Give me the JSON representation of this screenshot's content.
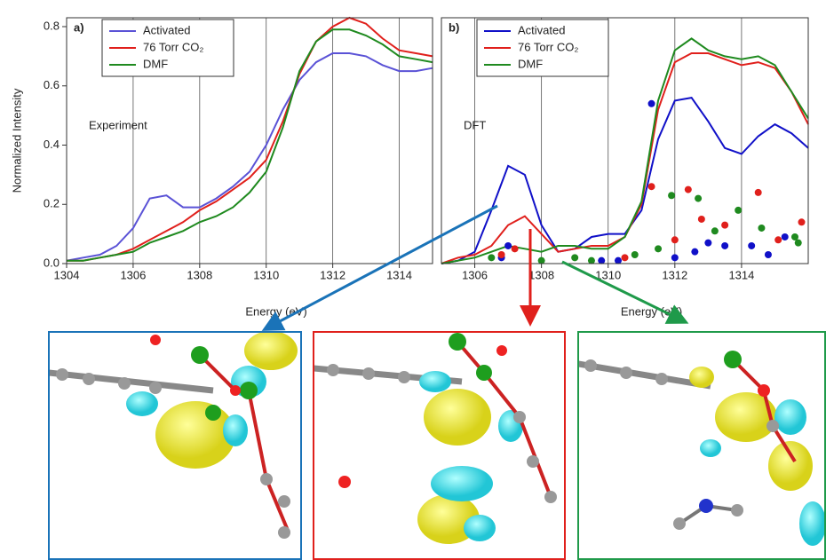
{
  "chart_data": [
    {
      "type": "line",
      "label": "a)",
      "annotation": "Experiment",
      "xlabel": "Energy (eV)",
      "ylabel": "Normalized Intensity",
      "xlim": [
        1304,
        1315
      ],
      "xticks": [
        1304,
        1306,
        1308,
        1310,
        1312,
        1314
      ],
      "ylim": [
        0,
        0.83
      ],
      "yticks": [
        {
          "value": 0,
          "label": "0.0"
        },
        0.2,
        0.4,
        0.6,
        0.8
      ],
      "grid": true,
      "x": [
        1304,
        1304.5,
        1305,
        1305.5,
        1306,
        1306.5,
        1307,
        1307.5,
        1308,
        1308.5,
        1309,
        1309.5,
        1310,
        1310.5,
        1311,
        1311.5,
        1312,
        1312.5,
        1313,
        1313.5,
        1314,
        1314.5,
        1315
      ],
      "series": [
        {
          "name": "Activated",
          "color": "#5a52d6",
          "values": [
            0.01,
            0.02,
            0.03,
            0.06,
            0.12,
            0.22,
            0.23,
            0.19,
            0.19,
            0.22,
            0.26,
            0.31,
            0.4,
            0.52,
            0.62,
            0.68,
            0.71,
            0.71,
            0.7,
            0.67,
            0.65,
            0.65,
            0.66
          ]
        },
        {
          "name": "76 Torr CO₂",
          "color": "#e0201c",
          "values": [
            0.01,
            0.01,
            0.02,
            0.03,
            0.05,
            0.08,
            0.11,
            0.14,
            0.18,
            0.21,
            0.25,
            0.29,
            0.35,
            0.48,
            0.64,
            0.75,
            0.8,
            0.83,
            0.81,
            0.76,
            0.72,
            0.71,
            0.7
          ]
        },
        {
          "name": "DMF",
          "color": "#1f8a1f",
          "values": [
            0.01,
            0.01,
            0.02,
            0.03,
            0.04,
            0.07,
            0.09,
            0.11,
            0.14,
            0.16,
            0.19,
            0.24,
            0.31,
            0.46,
            0.65,
            0.75,
            0.79,
            0.79,
            0.77,
            0.74,
            0.7,
            0.69,
            0.68
          ]
        }
      ]
    },
    {
      "type": "line",
      "label": "b)",
      "annotation": "DFT",
      "xlabel": "Energy (eV)",
      "xlim": [
        1305,
        1316
      ],
      "xticks": [
        1306,
        1308,
        1310,
        1312,
        1314
      ],
      "ylim": [
        0,
        0.83
      ],
      "grid": true,
      "x": [
        1305,
        1305.5,
        1306,
        1306.5,
        1307,
        1307.5,
        1308,
        1308.5,
        1309,
        1309.5,
        1310,
        1310.5,
        1311,
        1311.5,
        1312,
        1312.5,
        1313,
        1313.5,
        1314,
        1314.5,
        1315,
        1315.5,
        1316
      ],
      "series": [
        {
          "name": "Activated",
          "color": "#1010c8",
          "values": [
            0.0,
            0.01,
            0.04,
            0.18,
            0.33,
            0.3,
            0.13,
            0.04,
            0.05,
            0.09,
            0.1,
            0.1,
            0.18,
            0.42,
            0.55,
            0.56,
            0.48,
            0.39,
            0.37,
            0.43,
            0.47,
            0.44,
            0.39
          ]
        },
        {
          "name": "76 Torr CO₂",
          "color": "#e0201c",
          "values": [
            0.0,
            0.02,
            0.03,
            0.06,
            0.13,
            0.16,
            0.1,
            0.04,
            0.05,
            0.06,
            0.06,
            0.09,
            0.2,
            0.52,
            0.68,
            0.71,
            0.71,
            0.69,
            0.67,
            0.68,
            0.66,
            0.58,
            0.47
          ]
        },
        {
          "name": "DMF",
          "color": "#1f8a1f",
          "values": [
            0.0,
            0.01,
            0.02,
            0.04,
            0.06,
            0.05,
            0.04,
            0.06,
            0.06,
            0.05,
            0.05,
            0.09,
            0.21,
            0.55,
            0.72,
            0.76,
            0.72,
            0.7,
            0.69,
            0.7,
            0.67,
            0.58,
            0.49
          ]
        }
      ],
      "scatter": [
        {
          "color": "#1010c8",
          "x": [
            1306.8,
            1307,
            1309.8,
            1310.3,
            1311.3,
            1312,
            1312.6,
            1313,
            1313.5,
            1314.3,
            1314.8,
            1315.3
          ],
          "y": [
            0.02,
            0.06,
            0.01,
            0.01,
            0.54,
            0.02,
            0.04,
            0.07,
            0.06,
            0.06,
            0.03,
            0.09
          ]
        },
        {
          "color": "#e0201c",
          "x": [
            1306.8,
            1307.2,
            1310.5,
            1311.3,
            1312,
            1312.4,
            1312.8,
            1313.5,
            1314.5,
            1315.1,
            1315.8
          ],
          "y": [
            0.03,
            0.05,
            0.02,
            0.26,
            0.08,
            0.25,
            0.15,
            0.13,
            0.24,
            0.08,
            0.14
          ]
        },
        {
          "color": "#1f8a1f",
          "x": [
            1306.5,
            1308,
            1309,
            1309.5,
            1310.8,
            1311.5,
            1311.9,
            1312.7,
            1313.2,
            1313.9,
            1314.6,
            1315.6,
            1315.7
          ],
          "y": [
            0.02,
            0.01,
            0.02,
            0.01,
            0.03,
            0.05,
            0.23,
            0.22,
            0.11,
            0.18,
            0.12,
            0.09,
            0.07
          ]
        }
      ]
    }
  ]
}
